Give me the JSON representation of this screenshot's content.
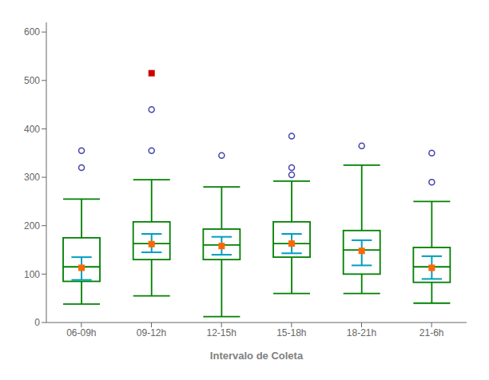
{
  "chart_data": {
    "type": "box",
    "xlabel": "Intervalo de Coleta",
    "categories": [
      "06-09h",
      "09-12h",
      "12-15h",
      "15-18h",
      "18-21h",
      "21-6h"
    ],
    "ylim": [
      0,
      620
    ],
    "yticks": [
      0,
      100,
      200,
      300,
      400,
      500,
      600
    ],
    "grid": false,
    "colors": [
      "#008000",
      "#FF6600",
      "#009EC0",
      "#4444AA",
      "#CC0000"
    ],
    "boxes": [
      {
        "q1": 85,
        "median": 115,
        "q3": 175,
        "whislo": 38,
        "whishi": 255,
        "mean": 113,
        "ci_low": 88,
        "ci_high": 135,
        "fliers": [
          320,
          355
        ],
        "special_fliers": []
      },
      {
        "q1": 130,
        "median": 163,
        "q3": 208,
        "whislo": 55,
        "whishi": 295,
        "mean": 162,
        "ci_low": 145,
        "ci_high": 183,
        "fliers": [
          355,
          440
        ],
        "special_fliers": [
          515
        ]
      },
      {
        "q1": 130,
        "median": 160,
        "q3": 193,
        "whislo": 12,
        "whishi": 280,
        "mean": 158,
        "ci_low": 140,
        "ci_high": 177,
        "fliers": [
          345
        ],
        "special_fliers": []
      },
      {
        "q1": 135,
        "median": 163,
        "q3": 208,
        "whislo": 60,
        "whishi": 292,
        "mean": 163,
        "ci_low": 143,
        "ci_high": 183,
        "fliers": [
          305,
          320,
          385
        ],
        "special_fliers": []
      },
      {
        "q1": 100,
        "median": 150,
        "q3": 190,
        "whislo": 60,
        "whishi": 325,
        "mean": 148,
        "ci_low": 118,
        "ci_high": 170,
        "fliers": [
          365
        ],
        "special_fliers": []
      },
      {
        "q1": 83,
        "median": 115,
        "q3": 155,
        "whislo": 40,
        "whishi": 250,
        "mean": 113,
        "ci_low": 90,
        "ci_high": 137,
        "fliers": [
          290,
          350
        ],
        "special_fliers": []
      }
    ]
  }
}
